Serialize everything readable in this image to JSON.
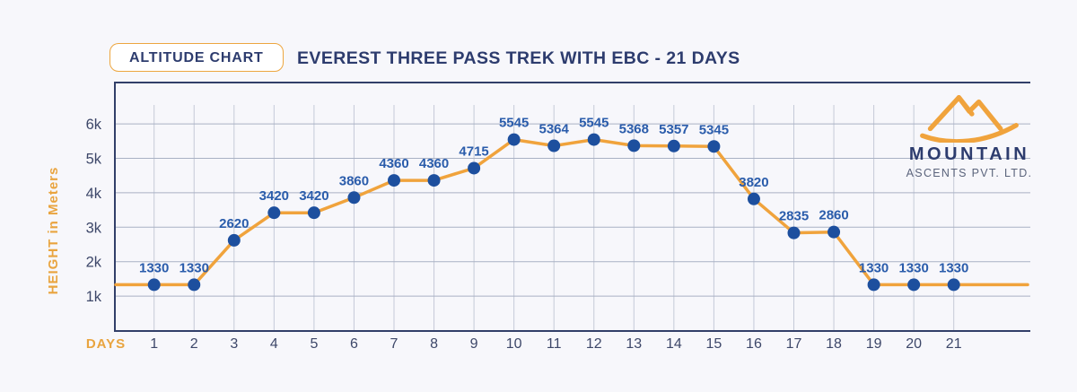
{
  "header": {
    "badge_label": "ALTITUDE CHART",
    "title": "EVEREST THREE PASS TREK WITH EBC - 21 DAYS"
  },
  "chart_data": {
    "type": "line",
    "title": "EVEREST THREE PASS TREK WITH EBC - 21 DAYS",
    "xlabel": "DAYS",
    "ylabel": "HEIGHT in Meters",
    "categories": [
      1,
      2,
      3,
      4,
      5,
      6,
      7,
      8,
      9,
      10,
      11,
      12,
      13,
      14,
      15,
      16,
      17,
      18,
      19,
      20,
      21
    ],
    "values": [
      1330,
      1330,
      2620,
      3420,
      3420,
      3860,
      4360,
      4360,
      4715,
      5545,
      5364,
      5545,
      5368,
      5357,
      5345,
      3820,
      2835,
      2860,
      1330,
      1330,
      1330
    ],
    "ytick_labels": [
      "1k",
      "2k",
      "3k",
      "4k",
      "5k",
      "6k"
    ],
    "ytick_values": [
      1000,
      2000,
      3000,
      4000,
      5000,
      6000
    ],
    "ylim": [
      0,
      7200
    ],
    "grid": true,
    "legend": "none",
    "line_extends_to_plot_edges": true,
    "line_edge_value": 1330
  },
  "logo": {
    "name": "MOUNTAIN",
    "subname": "ASCENTS PVT. LTD."
  },
  "colors": {
    "background": "#f7f7fb",
    "plot_border": "#323f69",
    "grid_vertical": "#c5cad8",
    "grid_horizontal": "#a9b1c4",
    "line": "#f0a33c",
    "point": "#1d4f9e",
    "value_label": "#2a5cab",
    "tick_label": "#3d4769",
    "axis_accent": "#e9a43f",
    "title": "#2d3c6e",
    "badge_border": "#eda63f",
    "logo_orange": "#f0a33c",
    "logo_navy": "#2d3c6e",
    "logo_gray": "#5b647c"
  }
}
